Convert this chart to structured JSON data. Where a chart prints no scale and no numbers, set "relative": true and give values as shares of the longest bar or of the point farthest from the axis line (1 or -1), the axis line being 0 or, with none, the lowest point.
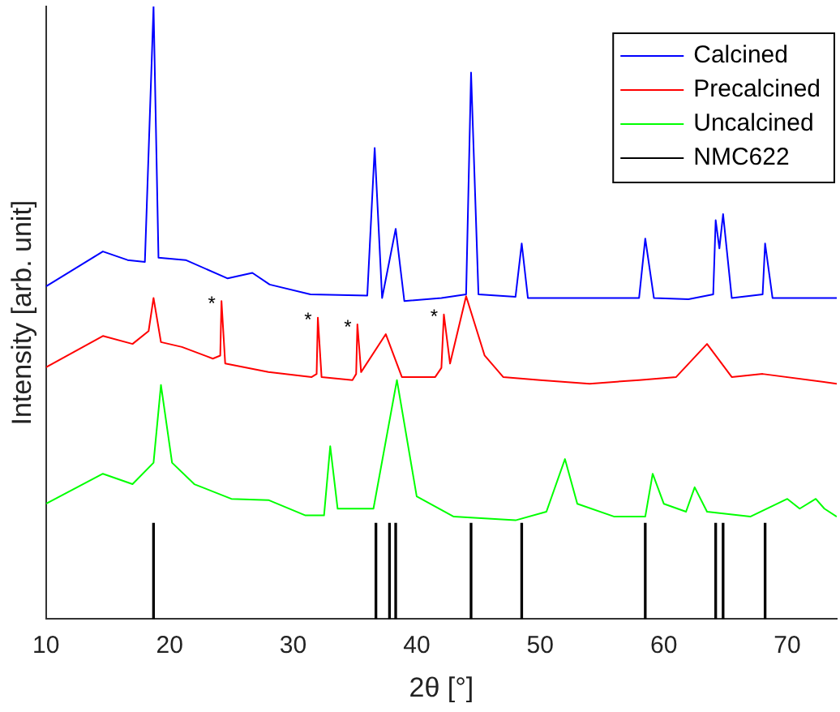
{
  "chart_data": {
    "type": "line",
    "relative": true,
    "xlabel": "2θ [°]",
    "ylabel": "Intensity [arb. unit]",
    "xlim": [
      10,
      74
    ],
    "xticks": [
      10,
      20,
      30,
      40,
      50,
      60,
      70
    ],
    "legend": "top right",
    "grid": false,
    "marker": "none",
    "line_style": "solid",
    "annotations": [
      {
        "text": "*",
        "x": 24.2,
        "y": 0.519
      },
      {
        "text": "*",
        "x": 32,
        "y": 0.492
      },
      {
        "text": "*",
        "x": 35.2,
        "y": 0.481
      },
      {
        "text": "*",
        "x": 42.2,
        "y": 0.497
      }
    ],
    "series": [
      {
        "name": "Calcined",
        "color": "#0000ff",
        "x": [
          10,
          14.6,
          16.6,
          18,
          18.7,
          19.1,
          21.3,
          24.7,
          26.7,
          28.1,
          31.4,
          36,
          36.6,
          37.2,
          38.3,
          39,
          42,
          44,
          44.4,
          45,
          48,
          48.5,
          49,
          52,
          55,
          58,
          58.5,
          59.2,
          62,
          64,
          64.2,
          64.5,
          64.8,
          65.5,
          68,
          68.2,
          68.8,
          74
        ],
        "values": [
          0.543,
          0.6,
          0.586,
          0.583,
          1.0,
          0.59,
          0.586,
          0.556,
          0.565,
          0.546,
          0.53,
          0.528,
          0.769,
          0.524,
          0.637,
          0.519,
          0.524,
          0.53,
          0.892,
          0.53,
          0.526,
          0.613,
          0.524,
          0.524,
          0.524,
          0.524,
          0.621,
          0.524,
          0.522,
          0.53,
          0.651,
          0.605,
          0.661,
          0.524,
          0.53,
          0.613,
          0.524,
          0.524
        ]
      },
      {
        "name": "Precalcined",
        "color": "#ff0000",
        "x": [
          10,
          14.6,
          17,
          18.3,
          18.7,
          19.3,
          21,
          23.5,
          24.1,
          24.2,
          24.5,
          28,
          31.5,
          31.9,
          32,
          32.3,
          34.8,
          35.1,
          35.2,
          35.5,
          37.5,
          38.8,
          41.5,
          42,
          42.2,
          42.7,
          44,
          45.5,
          47,
          50,
          54,
          58,
          61,
          63.5,
          65.5,
          68,
          74
        ],
        "values": [
          0.411,
          0.462,
          0.449,
          0.47,
          0.524,
          0.452,
          0.444,
          0.425,
          0.43,
          0.519,
          0.417,
          0.403,
          0.395,
          0.4,
          0.492,
          0.395,
          0.39,
          0.4,
          0.481,
          0.403,
          0.465,
          0.395,
          0.395,
          0.41,
          0.497,
          0.417,
          0.527,
          0.43,
          0.395,
          0.39,
          0.384,
          0.39,
          0.395,
          0.449,
          0.395,
          0.4,
          0.384
        ]
      },
      {
        "name": "Uncalcined",
        "color": "#00ff00",
        "x": [
          10,
          14.6,
          17,
          18.7,
          19.3,
          20.2,
          22,
          25,
          28,
          31,
          32.5,
          33,
          33.6,
          36.5,
          38.4,
          40,
          43,
          48,
          50.5,
          52,
          53,
          56,
          58.5,
          59.1,
          60,
          61.8,
          62.5,
          63.5,
          67,
          70,
          71,
          72.3,
          73,
          74
        ],
        "values": [
          0.188,
          0.237,
          0.22,
          0.255,
          0.382,
          0.255,
          0.22,
          0.196,
          0.194,
          0.169,
          0.169,
          0.282,
          0.18,
          0.18,
          0.39,
          0.2,
          0.167,
          0.161,
          0.175,
          0.261,
          0.188,
          0.167,
          0.167,
          0.237,
          0.188,
          0.175,
          0.215,
          0.175,
          0.167,
          0.196,
          0.18,
          0.196,
          0.18,
          0.167
        ]
      },
      {
        "name": "NMC622",
        "type": "bar",
        "color": "#000000",
        "x": [
          18.7,
          36.7,
          37.8,
          38.3,
          44.4,
          48.5,
          58.5,
          64.2,
          64.8,
          68.2
        ],
        "values": [
          0.156,
          0.156,
          0.156,
          0.156,
          0.156,
          0.156,
          0.156,
          0.156,
          0.156,
          0.156
        ]
      }
    ]
  }
}
